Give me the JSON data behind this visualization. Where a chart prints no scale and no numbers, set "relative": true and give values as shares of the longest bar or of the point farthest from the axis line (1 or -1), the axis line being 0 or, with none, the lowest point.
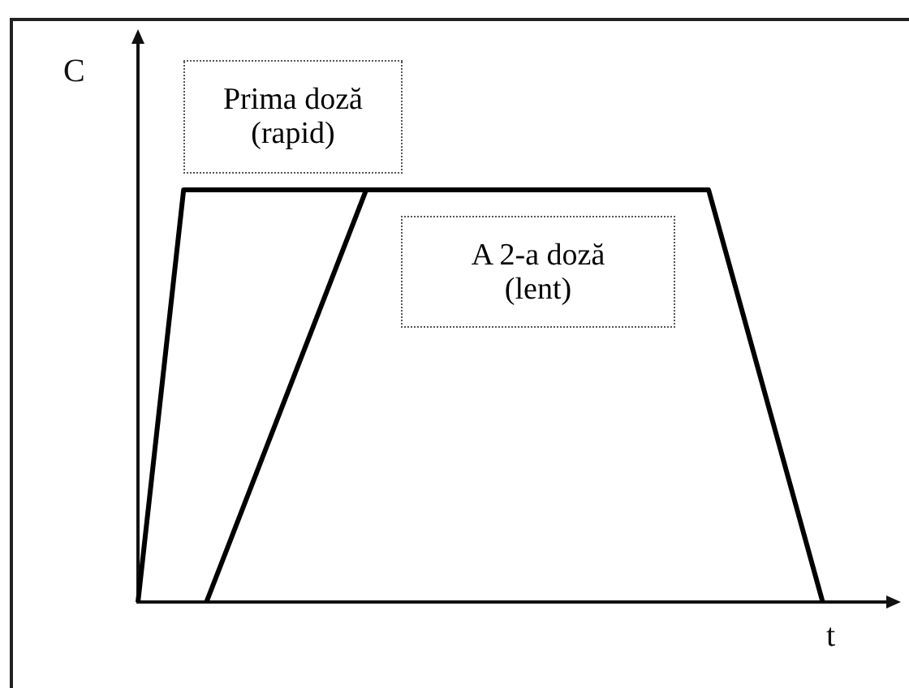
{
  "chart_data": {
    "type": "line",
    "relative": true,
    "xlabel": "t",
    "ylabel": "C",
    "categories": [
      null,
      null,
      null,
      null,
      null,
      null,
      null,
      null,
      null,
      null,
      null,
      null,
      null,
      null,
      null,
      null,
      null,
      null,
      null,
      null,
      null,
      null,
      null,
      null,
      null,
      null,
      null,
      null,
      null,
      null,
      null,
      null,
      null,
      null
    ],
    "series": [
      {
        "name": "Prima doză (rapid)",
        "color": "#000000",
        "values": [
          0,
          null,
          1,
          null,
          null,
          null,
          null,
          null,
          null,
          null,
          1,
          null,
          null,
          null,
          null,
          null,
          null,
          null,
          null,
          null,
          null,
          null,
          null,
          null,
          null,
          null,
          null,
          null,
          null,
          null,
          null,
          null,
          null,
          null
        ]
      },
      {
        "name": "A 2-a doză (lent)",
        "color": "#000000",
        "values": [
          null,
          null,
          null,
          0,
          null,
          null,
          null,
          null,
          null,
          null,
          1,
          null,
          null,
          null,
          null,
          null,
          null,
          null,
          null,
          null,
          null,
          null,
          null,
          null,
          null,
          1,
          null,
          null,
          null,
          null,
          0,
          null,
          null,
          null
        ]
      }
    ]
  }
}
